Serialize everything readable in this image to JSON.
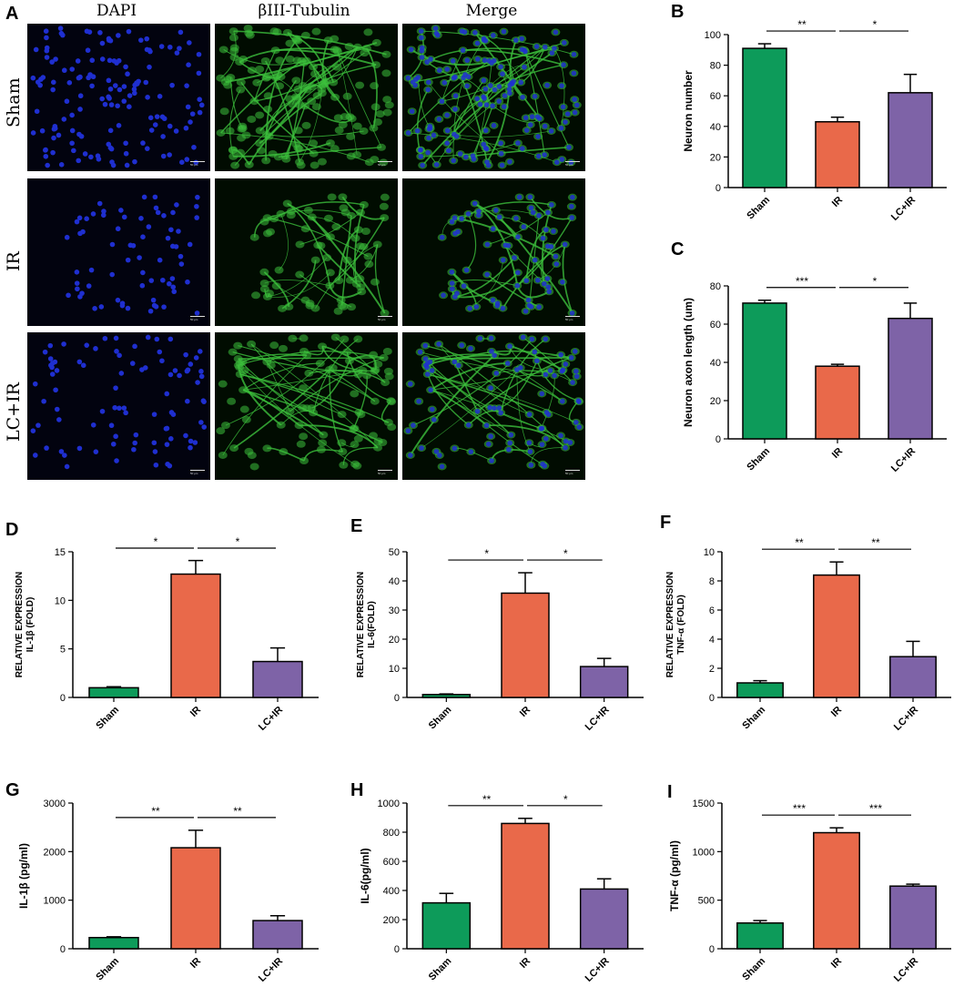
{
  "panel_a": {
    "letter": "A",
    "columns": [
      "DAPI",
      "βIII-Tubulin",
      "Merge"
    ],
    "rows": [
      "Sham",
      "IR",
      "LC+IR"
    ],
    "scalebar_label": "50 μm"
  },
  "colors": {
    "Sham": "#0d9b5a",
    "IR": "#e9694a",
    "LC+IR": "#7e63a7",
    "dapi_blue": "#1f2fd0",
    "tubulin_green": "#3cbf3c"
  },
  "chart_data": [
    {
      "panel": "B",
      "type": "bar",
      "categories": [
        "Sham",
        "IR",
        "LC+IR"
      ],
      "values": [
        91,
        43,
        62
      ],
      "errors": [
        3,
        3,
        12
      ],
      "ylabel": "Neuron number",
      "xlabel": "",
      "ylim": [
        0,
        100
      ],
      "yticks": [
        0,
        20,
        40,
        60,
        80,
        100
      ],
      "ytick_labels": [
        "0",
        "20",
        "40",
        "60",
        "80",
        "100"
      ],
      "significance": [
        {
          "from": 0,
          "to": 1,
          "label": "**"
        },
        {
          "from": 1,
          "to": 2,
          "label": "*"
        }
      ]
    },
    {
      "panel": "C",
      "type": "bar",
      "categories": [
        "Sham",
        "IR",
        "LC+IR"
      ],
      "values": [
        71,
        38,
        63
      ],
      "errors": [
        1.5,
        1,
        8
      ],
      "ylabel": "Neuron axon length (um)",
      "xlabel": "",
      "ylim": [
        0,
        80
      ],
      "yticks": [
        0,
        20,
        40,
        60,
        80
      ],
      "ytick_labels": [
        "0",
        "20",
        "40",
        "60",
        "80"
      ],
      "significance": [
        {
          "from": 0,
          "to": 1,
          "label": "***"
        },
        {
          "from": 1,
          "to": 2,
          "label": "*"
        }
      ]
    },
    {
      "panel": "D",
      "type": "bar",
      "categories": [
        "Sham",
        "IR",
        "LC+IR"
      ],
      "values": [
        1.0,
        12.7,
        3.7
      ],
      "errors": [
        0.1,
        1.4,
        1.4
      ],
      "ylabel": "RELATIVE EXPRESSION\nIL-1β (FOLD)",
      "xlabel": "",
      "ylim": [
        0,
        15
      ],
      "yticks": [
        0,
        5,
        10,
        15
      ],
      "ytick_labels": [
        "0",
        "5",
        "10",
        "15"
      ],
      "significance": [
        {
          "from": 0,
          "to": 1,
          "label": "*"
        },
        {
          "from": 1,
          "to": 2,
          "label": "*"
        }
      ]
    },
    {
      "panel": "E",
      "type": "bar",
      "categories": [
        "Sham",
        "IR",
        "LC+IR"
      ],
      "values": [
        1.0,
        35.8,
        10.6
      ],
      "errors": [
        0.2,
        7,
        2.8
      ],
      "ylabel": "RELATIVE EXPRESSION\nIL-6(FOLD)",
      "xlabel": "",
      "ylim": [
        0,
        50
      ],
      "yticks": [
        0,
        10,
        20,
        30,
        40,
        50
      ],
      "ytick_labels": [
        "0",
        "10",
        "20",
        "30",
        "40",
        "50"
      ],
      "significance": [
        {
          "from": 0,
          "to": 1,
          "label": "*"
        },
        {
          "from": 1,
          "to": 2,
          "label": "*"
        }
      ]
    },
    {
      "panel": "F",
      "type": "bar",
      "categories": [
        "Sham",
        "IR",
        "LC+IR"
      ],
      "values": [
        1.0,
        8.4,
        2.8
      ],
      "errors": [
        0.15,
        0.9,
        1.05
      ],
      "ylabel": "RELATIVE EXPRESSION\nTNF-α (FOLD)",
      "xlabel": "",
      "ylim": [
        0,
        10
      ],
      "yticks": [
        0,
        2,
        4,
        6,
        8,
        10
      ],
      "ytick_labels": [
        "0",
        "2",
        "4",
        "6",
        "8",
        "10"
      ],
      "significance": [
        {
          "from": 0,
          "to": 1,
          "label": "**"
        },
        {
          "from": 1,
          "to": 2,
          "label": "**"
        }
      ]
    },
    {
      "panel": "G",
      "type": "bar",
      "categories": [
        "Sham",
        "IR",
        "LC+IR"
      ],
      "values": [
        230,
        2080,
        580
      ],
      "errors": [
        15,
        360,
        100
      ],
      "ylabel": "IL-1β (pg/ml)",
      "xlabel": "",
      "ylim": [
        0,
        3000
      ],
      "yticks": [
        0,
        1000,
        2000,
        3000
      ],
      "ytick_labels": [
        "0",
        "1000",
        "2000",
        "3000"
      ],
      "significance": [
        {
          "from": 0,
          "to": 1,
          "label": "**"
        },
        {
          "from": 1,
          "to": 2,
          "label": "**"
        }
      ]
    },
    {
      "panel": "H",
      "type": "bar",
      "categories": [
        "Sham",
        "IR",
        "LC+IR"
      ],
      "values": [
        315,
        860,
        410
      ],
      "errors": [
        65,
        35,
        70
      ],
      "ylabel": "IL-6(pg/ml)",
      "xlabel": "",
      "ylim": [
        0,
        1000
      ],
      "yticks": [
        0,
        200,
        400,
        600,
        800,
        1000
      ],
      "ytick_labels": [
        "0",
        "200",
        "400",
        "600",
        "800",
        "1000"
      ],
      "significance": [
        {
          "from": 0,
          "to": 1,
          "label": "**"
        },
        {
          "from": 1,
          "to": 2,
          "label": "*"
        }
      ]
    },
    {
      "panel": "I",
      "type": "bar",
      "categories": [
        "Sham",
        "IR",
        "LC+IR"
      ],
      "values": [
        265,
        1195,
        645
      ],
      "errors": [
        25,
        50,
        20
      ],
      "ylabel": "TNF-α (pg/ml)",
      "xlabel": "",
      "ylim": [
        0,
        1500
      ],
      "yticks": [
        0,
        500,
        1000,
        1500
      ],
      "ytick_labels": [
        "0",
        "500",
        "1000",
        "1500"
      ],
      "significance": [
        {
          "from": 0,
          "to": 1,
          "label": "***"
        },
        {
          "from": 1,
          "to": 2,
          "label": "***"
        }
      ]
    }
  ]
}
